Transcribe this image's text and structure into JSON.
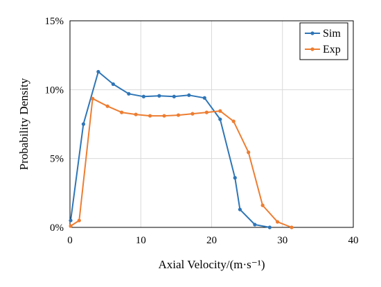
{
  "chart_data": {
    "type": "line",
    "title": "",
    "xlabel": "Axial Velocity/(m·s⁻¹)",
    "ylabel": "Probability Density",
    "xlim": [
      0,
      40
    ],
    "ylim": [
      0,
      15
    ],
    "xticks": [
      0,
      10,
      20,
      30,
      40
    ],
    "xtick_labels": [
      "0",
      "10",
      "20",
      "30",
      "40"
    ],
    "yticks": [
      0,
      5,
      10,
      15
    ],
    "ytick_labels": [
      "0%",
      "5%",
      "10%",
      "15%"
    ],
    "grid": true,
    "legend_position": "top-right",
    "series": [
      {
        "name": "Sim",
        "color": "#2E75B6",
        "x": [
          0.1,
          1.9,
          4.0,
          6.1,
          8.3,
          10.4,
          12.6,
          14.7,
          16.8,
          19.0,
          21.2,
          23.3,
          24.0,
          26.1,
          28.2
        ],
        "y": [
          0.5,
          7.5,
          11.3,
          10.4,
          9.7,
          9.5,
          9.55,
          9.5,
          9.6,
          9.4,
          7.85,
          3.6,
          1.3,
          0.2,
          0.0
        ]
      },
      {
        "name": "Exp",
        "color": "#ED7D31",
        "x": [
          0.1,
          1.3,
          3.2,
          5.3,
          7.3,
          9.3,
          11.3,
          13.3,
          15.3,
          17.3,
          19.3,
          21.2,
          23.1,
          25.2,
          27.2,
          29.3,
          31.3
        ],
        "y": [
          0.1,
          0.5,
          9.35,
          8.8,
          8.35,
          8.2,
          8.1,
          8.1,
          8.15,
          8.25,
          8.35,
          8.45,
          7.7,
          5.45,
          1.6,
          0.4,
          0.0
        ]
      }
    ]
  }
}
